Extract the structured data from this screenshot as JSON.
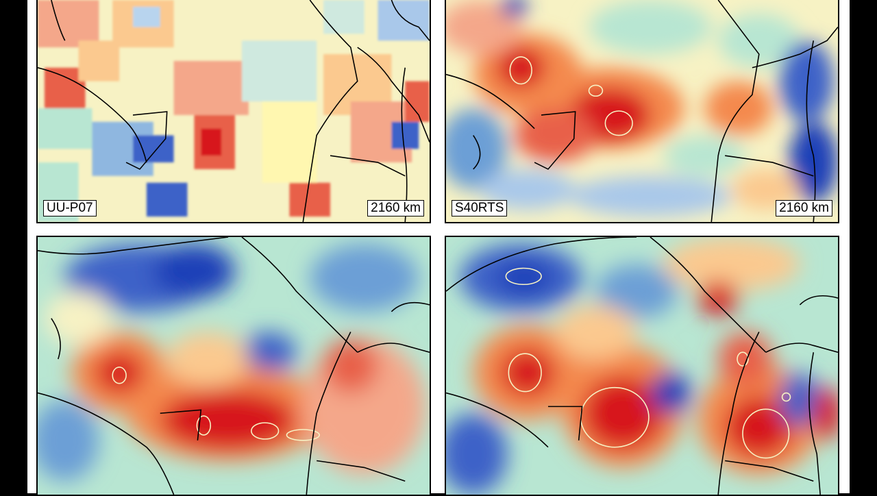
{
  "panels": [
    {
      "model": "UU-P07",
      "depth": "2160 km"
    },
    {
      "model": "S40RTS",
      "depth": "2160 km"
    },
    {
      "model": "",
      "depth": ""
    },
    {
      "model": "",
      "depth": ""
    }
  ],
  "colors": {
    "background": "#000000",
    "neutral": "#f7f2c4",
    "slow_dark": "#d7191c",
    "slow_mid": "#f4894e",
    "slow_light": "#fbc98f",
    "fast_light": "#b8e6d2",
    "fast_mid": "#6c9fd6",
    "fast_dark": "#1f3fb8",
    "coastline": "#000000"
  }
}
